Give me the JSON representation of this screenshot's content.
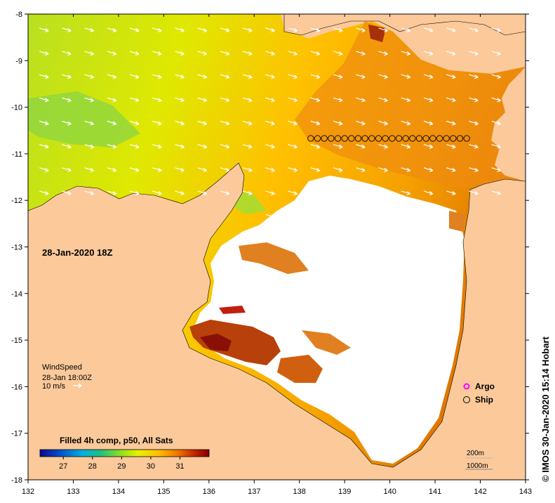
{
  "map": {
    "lon_range": [
      132,
      143
    ],
    "lat_range": [
      -18,
      -8
    ],
    "lon_ticks": [
      "132",
      "133",
      "134",
      "135",
      "136",
      "137",
      "138",
      "139",
      "140",
      "141",
      "142",
      "143"
    ],
    "lat_ticks": [
      "-8",
      "-9",
      "-10",
      "-11",
      "-12",
      "-13",
      "-14",
      "-15",
      "-16",
      "-17",
      "-18"
    ],
    "land_color": "#fbc99a",
    "cloud_color": "#ffffff"
  },
  "date_label": "28-Jan-2020 18Z",
  "wind": {
    "title": "WindSpeed",
    "time": "28-Jan 18:00Z",
    "scale_label": "10 m/s"
  },
  "legend": {
    "argo": "Argo",
    "argo_color": "#ff00ff",
    "ship": "Ship"
  },
  "colorbar": {
    "title": "Filled 4h comp, p50, All Sats",
    "ticks": [
      "27",
      "28",
      "29",
      "30",
      "31"
    ],
    "tick_values": [
      27,
      28,
      29,
      30,
      31
    ],
    "range": [
      26.2,
      32.0
    ]
  },
  "contours": {
    "label_200": "200m",
    "label_1000": "1000m"
  },
  "credit": "© IMOS 30-Jan-2020 15:14 Hobart",
  "ship_track": {
    "lat": -10.67,
    "lons": [
      138.25,
      138.4,
      138.55,
      138.7,
      138.85,
      139.0,
      139.15,
      139.3,
      139.45,
      139.6,
      139.75,
      139.9,
      140.05,
      140.2,
      140.35,
      140.5,
      140.65,
      140.8,
      140.95,
      141.1,
      141.25,
      141.4,
      141.55,
      141.7
    ]
  }
}
